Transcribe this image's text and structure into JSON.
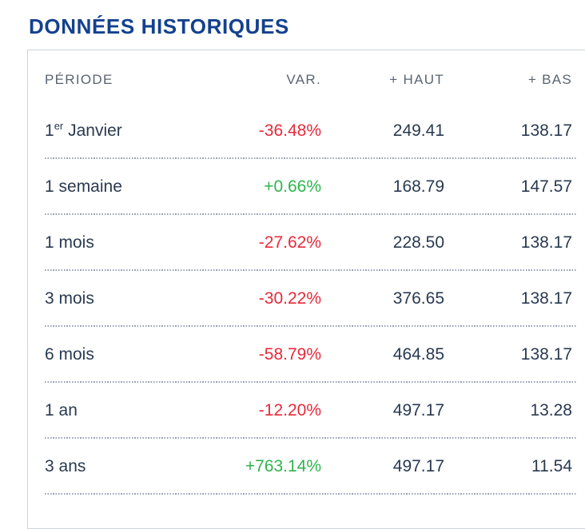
{
  "title": "DONNÉES HISTORIQUES",
  "table": {
    "headers": {
      "period": "PÉRIODE",
      "var": "VAR.",
      "high": "+ HAUT",
      "low": "+ BAS"
    },
    "rows": [
      {
        "period_base": "1",
        "period_sup": "er",
        "period_rest": " Janvier",
        "var": "-36.48%",
        "trend": "down",
        "high": "249.41",
        "low": "138.17"
      },
      {
        "period_base": "1 semaine",
        "period_sup": "",
        "period_rest": "",
        "var": "+0.66%",
        "trend": "up",
        "high": "168.79",
        "low": "147.57"
      },
      {
        "period_base": "1 mois",
        "period_sup": "",
        "period_rest": "",
        "var": "-27.62%",
        "trend": "down",
        "high": "228.50",
        "low": "138.17"
      },
      {
        "period_base": "3 mois",
        "period_sup": "",
        "period_rest": "",
        "var": "-30.22%",
        "trend": "down",
        "high": "376.65",
        "low": "138.17"
      },
      {
        "period_base": "6 mois",
        "period_sup": "",
        "period_rest": "",
        "var": "-58.79%",
        "trend": "down",
        "high": "464.85",
        "low": "138.17"
      },
      {
        "period_base": "1 an",
        "period_sup": "",
        "period_rest": "",
        "var": "-12.20%",
        "trend": "down",
        "high": "497.17",
        "low": "13.28"
      },
      {
        "period_base": "3 ans",
        "period_sup": "",
        "period_rest": "",
        "var": "+763.14%",
        "trend": "up",
        "high": "497.17",
        "low": "11.54"
      }
    ]
  },
  "colors": {
    "title_navy": "#14418e",
    "negative_red": "#e8293a",
    "positive_green": "#2fb44c",
    "row_text": "#293a50",
    "header_text": "#5a6473",
    "separator_dots": "#97a2b6",
    "panel_border": "#ccd4e0"
  }
}
